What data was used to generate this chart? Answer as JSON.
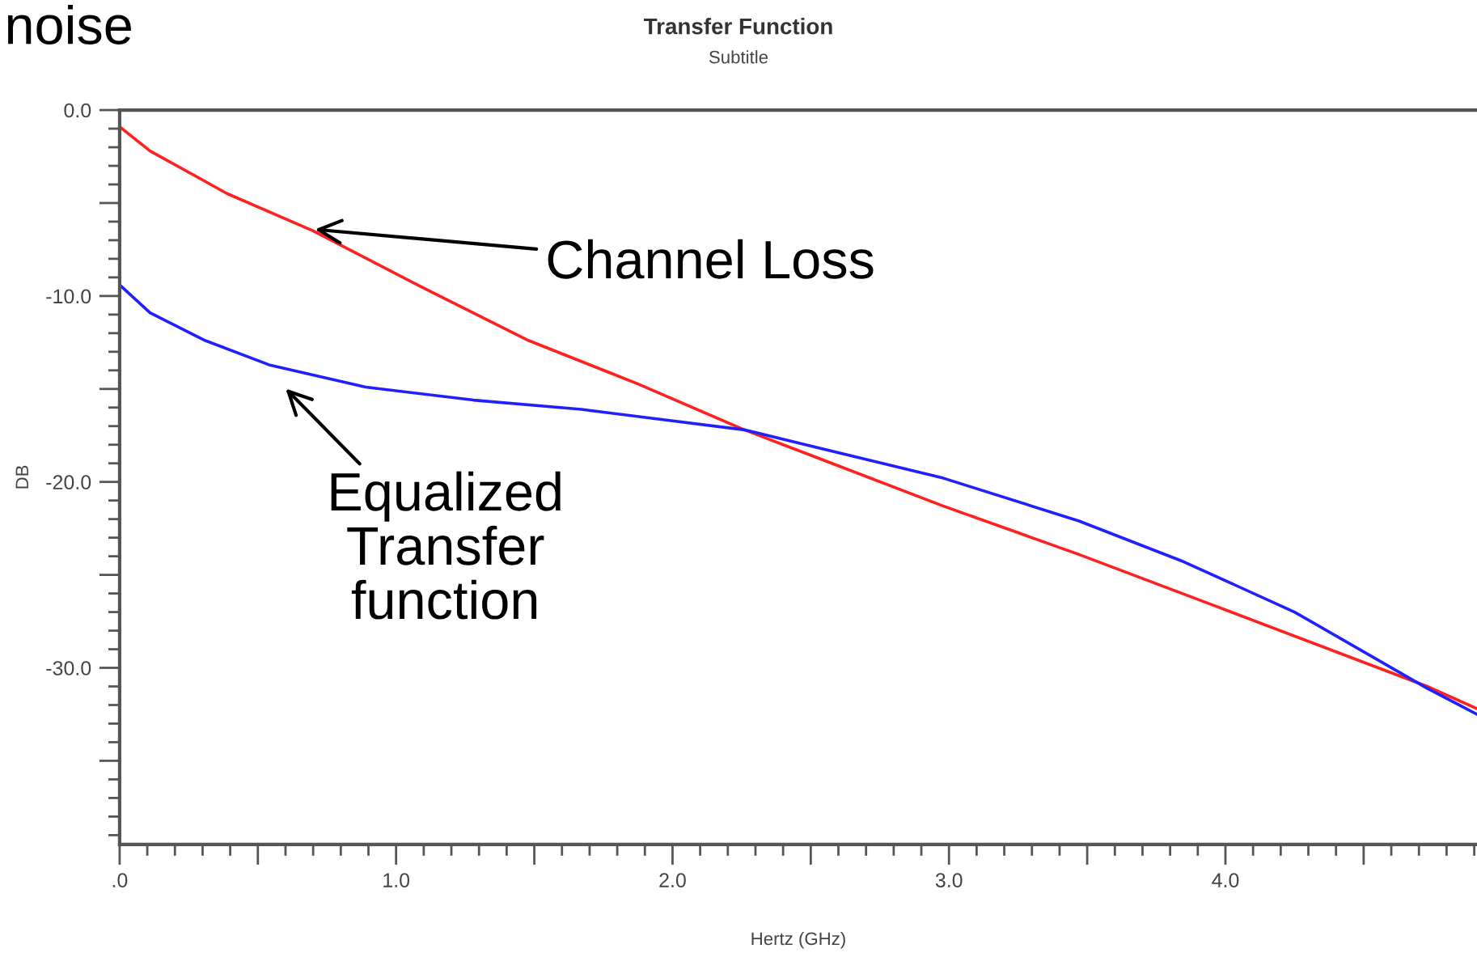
{
  "chart_data": {
    "type": "line",
    "title": "Transfer Function",
    "subtitle": "Subtitle",
    "xlabel": "Hertz (GHz)",
    "ylabel": "DB",
    "xlim": [
      0,
      4.91
    ],
    "ylim": [
      -39.5,
      0
    ],
    "xticks": [
      {
        "value": 0,
        "label": ".0"
      },
      {
        "value": 0.5,
        "label": null
      },
      {
        "value": 1,
        "label": "1.0"
      },
      {
        "value": 1.5,
        "label": null
      },
      {
        "value": 2,
        "label": "2.0"
      },
      {
        "value": 2.5,
        "label": null
      },
      {
        "value": 3,
        "label": "3.0"
      },
      {
        "value": 3.5,
        "label": null
      },
      {
        "value": 4,
        "label": "4.0"
      },
      {
        "value": 4.5,
        "label": null
      }
    ],
    "yticks": [
      {
        "value": 0,
        "label": "0.0"
      },
      {
        "value": -5,
        "label": null
      },
      {
        "value": -10,
        "label": "-10.0"
      },
      {
        "value": -15,
        "label": null
      },
      {
        "value": -20,
        "label": "-20.0"
      },
      {
        "value": -25,
        "label": null
      },
      {
        "value": -30,
        "label": "-30.0"
      },
      {
        "value": -35,
        "label": null
      }
    ],
    "grid": false,
    "legend": false,
    "marker": "none",
    "line_style": "solid",
    "series": [
      {
        "color": "#ff2020",
        "x": [
          0,
          0.11,
          0.39,
          0.7,
          1.09,
          1.48,
          1.87,
          2.26,
          2.98,
          3.47,
          3.95,
          4.73,
          4.91
        ],
        "values": [
          -0.9,
          -2.2,
          -4.5,
          -6.5,
          -9.5,
          -12.4,
          -14.7,
          -17.2,
          -21.3,
          -23.9,
          -26.6,
          -31.0,
          -32.2
        ]
      },
      {
        "color": "#2020ff",
        "x": [
          0,
          0.11,
          0.31,
          0.54,
          0.89,
          1.28,
          1.67,
          2.26,
          2.98,
          3.47,
          3.85,
          4.25,
          4.73,
          4.91
        ],
        "values": [
          -9.4,
          -10.9,
          -12.4,
          -13.7,
          -14.9,
          -15.6,
          -16.1,
          -17.2,
          -19.8,
          -22.1,
          -24.3,
          -27.0,
          -31.1,
          -32.5
        ]
      }
    ],
    "annotations": [
      "noise",
      {
        "text": "Channel Loss",
        "x": 0.69,
        "y": -6.4
      },
      "Equalized\nTransfer\nfunction"
    ]
  }
}
